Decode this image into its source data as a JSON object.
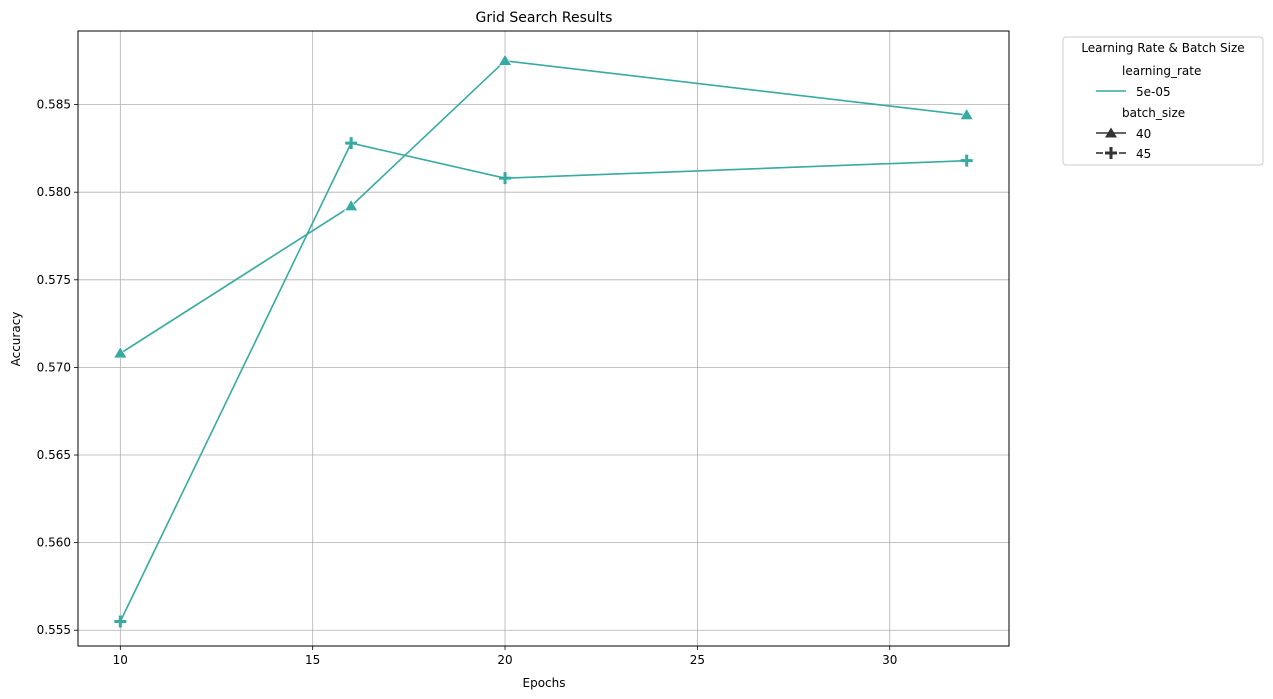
{
  "chart_data": {
    "type": "line",
    "title": "Grid Search Results",
    "xlabel": "Epochs",
    "ylabel": "Accuracy",
    "xlim": [
      8.9,
      33.1
    ],
    "ylim": [
      0.5541,
      0.5892
    ],
    "xticks": [
      10,
      15,
      20,
      25,
      30
    ],
    "xtick_labels": [
      "10",
      "15",
      "20",
      "25",
      "30"
    ],
    "yticks": [
      0.555,
      0.56,
      0.565,
      0.57,
      0.575,
      0.58,
      0.585
    ],
    "ytick_labels": [
      "0.555",
      "0.560",
      "0.565",
      "0.570",
      "0.575",
      "0.580",
      "0.585"
    ],
    "grid": true,
    "color": "#37aaa1",
    "series": [
      {
        "name": "40",
        "marker": "triangle",
        "x": [
          10,
          16,
          20,
          32
        ],
        "y": [
          0.5708,
          0.5792,
          0.5875,
          0.5844
        ]
      },
      {
        "name": "45",
        "marker": "plus",
        "x": [
          10,
          16,
          20,
          32
        ],
        "y": [
          0.5555,
          0.5828,
          0.5808,
          0.5818
        ]
      }
    ],
    "legend": {
      "title": "Learning Rate & Batch Size",
      "placement": "outside-top-right",
      "hue_title": "learning_rate",
      "hue_label": "5e-05",
      "style_title": "batch_size",
      "style_labels": [
        "40",
        "45"
      ]
    }
  }
}
